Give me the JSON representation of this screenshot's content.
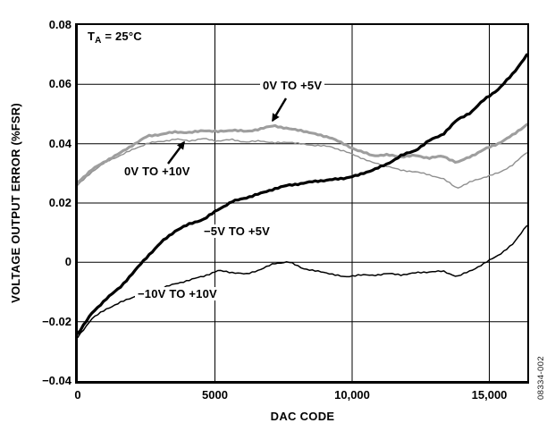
{
  "figure": {
    "condition_note": {
      "main": "T",
      "sub": "A",
      "rest": " = 25°C"
    },
    "y_axis_title": "VOLTAGE OUTPUT ERROR (%FSR)",
    "x_axis_title": "DAC CODE",
    "figure_number": "08334-002",
    "colors": {
      "axis_and_black_traces": "#000000",
      "gray_trace_thick": "#9e9e9e",
      "gray_trace_thin": "#8f8f8f",
      "background": "#ffffff"
    }
  },
  "chart_data": {
    "type": "line",
    "title": "",
    "xlabel": "DAC CODE",
    "ylabel": "VOLTAGE OUTPUT ERROR (%FSR)",
    "xlim": [
      0,
      16383
    ],
    "ylim": [
      -0.04,
      0.08
    ],
    "grid": "major gridlines on, black",
    "legend_position": "inline labels with arrows",
    "annotation": "TA = 25°C",
    "x_ticks": [
      {
        "value": 0,
        "label": "0"
      },
      {
        "value": 5000,
        "label": "5000"
      },
      {
        "value": 10000,
        "label": "10,000"
      },
      {
        "value": 15000,
        "label": "15,000"
      }
    ],
    "y_ticks": [
      {
        "value": 0.08,
        "label": "0.08"
      },
      {
        "value": 0.06,
        "label": "0.06"
      },
      {
        "value": 0.04,
        "label": "0.04"
      },
      {
        "value": 0.02,
        "label": "0.02"
      },
      {
        "value": 0,
        "label": "0"
      },
      {
        "value": -0.02,
        "label": "−0.02"
      },
      {
        "value": -0.04,
        "label": "−0.04"
      }
    ],
    "x": [
      0,
      512,
      1024,
      1536,
      2048,
      2560,
      3072,
      3584,
      4096,
      4608,
      5120,
      5632,
      6144,
      6656,
      7168,
      7680,
      8192,
      8704,
      9216,
      9728,
      10240,
      10752,
      11264,
      11776,
      12288,
      12800,
      13312,
      13824,
      14336,
      14848,
      15360,
      15872,
      16383
    ],
    "series": [
      {
        "name": "0V TO +5V",
        "color": "#9e9e9e",
        "width": 3.1,
        "values": [
          0.027,
          0.0312,
          0.0342,
          0.0368,
          0.0398,
          0.0426,
          0.0432,
          0.044,
          0.0437,
          0.0445,
          0.044,
          0.0446,
          0.0441,
          0.045,
          0.0461,
          0.045,
          0.0444,
          0.0431,
          0.0421,
          0.0397,
          0.0376,
          0.036,
          0.0362,
          0.0356,
          0.036,
          0.0352,
          0.0358,
          0.0336,
          0.0358,
          0.0382,
          0.0402,
          0.043,
          0.0466
        ]
      },
      {
        "name": "0V TO +10V",
        "color": "#8f8f8f",
        "width": 1.4,
        "values": [
          0.026,
          0.0305,
          0.0338,
          0.036,
          0.0382,
          0.0402,
          0.0408,
          0.0415,
          0.041,
          0.0417,
          0.0409,
          0.0414,
          0.0405,
          0.041,
          0.0402,
          0.0406,
          0.0398,
          0.0394,
          0.039,
          0.0374,
          0.0356,
          0.0336,
          0.0325,
          0.031,
          0.0306,
          0.0295,
          0.0282,
          0.025,
          0.0272,
          0.0288,
          0.0302,
          0.033,
          0.0372
        ]
      },
      {
        "name": "−5V TO +5V",
        "color": "#000000",
        "width": 3.2,
        "values": [
          -0.024,
          -0.0172,
          -0.0124,
          -0.0085,
          -0.0032,
          0.0022,
          0.007,
          0.0108,
          0.013,
          0.0146,
          0.0178,
          0.0205,
          0.0218,
          0.0232,
          0.0248,
          0.026,
          0.0266,
          0.0274,
          0.0278,
          0.0284,
          0.0294,
          0.0312,
          0.033,
          0.036,
          0.0376,
          0.041,
          0.0432,
          0.048,
          0.0506,
          0.0552,
          0.0585,
          0.0638,
          0.07
        ]
      },
      {
        "name": "−10V TO +10V",
        "color": "#000000",
        "width": 1.5,
        "values": [
          -0.0252,
          -0.019,
          -0.0158,
          -0.0136,
          -0.0116,
          -0.01,
          -0.0086,
          -0.0072,
          -0.0059,
          -0.0046,
          -0.0028,
          -0.0034,
          -0.004,
          -0.0024,
          -0.0004,
          0.0002,
          -0.002,
          -0.003,
          -0.0038,
          -0.005,
          -0.0042,
          -0.0044,
          -0.0038,
          -0.0042,
          -0.0036,
          -0.0032,
          -0.003,
          -0.0048,
          -0.0028,
          -0.0002,
          0.0026,
          0.0062,
          0.0128
        ]
      }
    ]
  }
}
